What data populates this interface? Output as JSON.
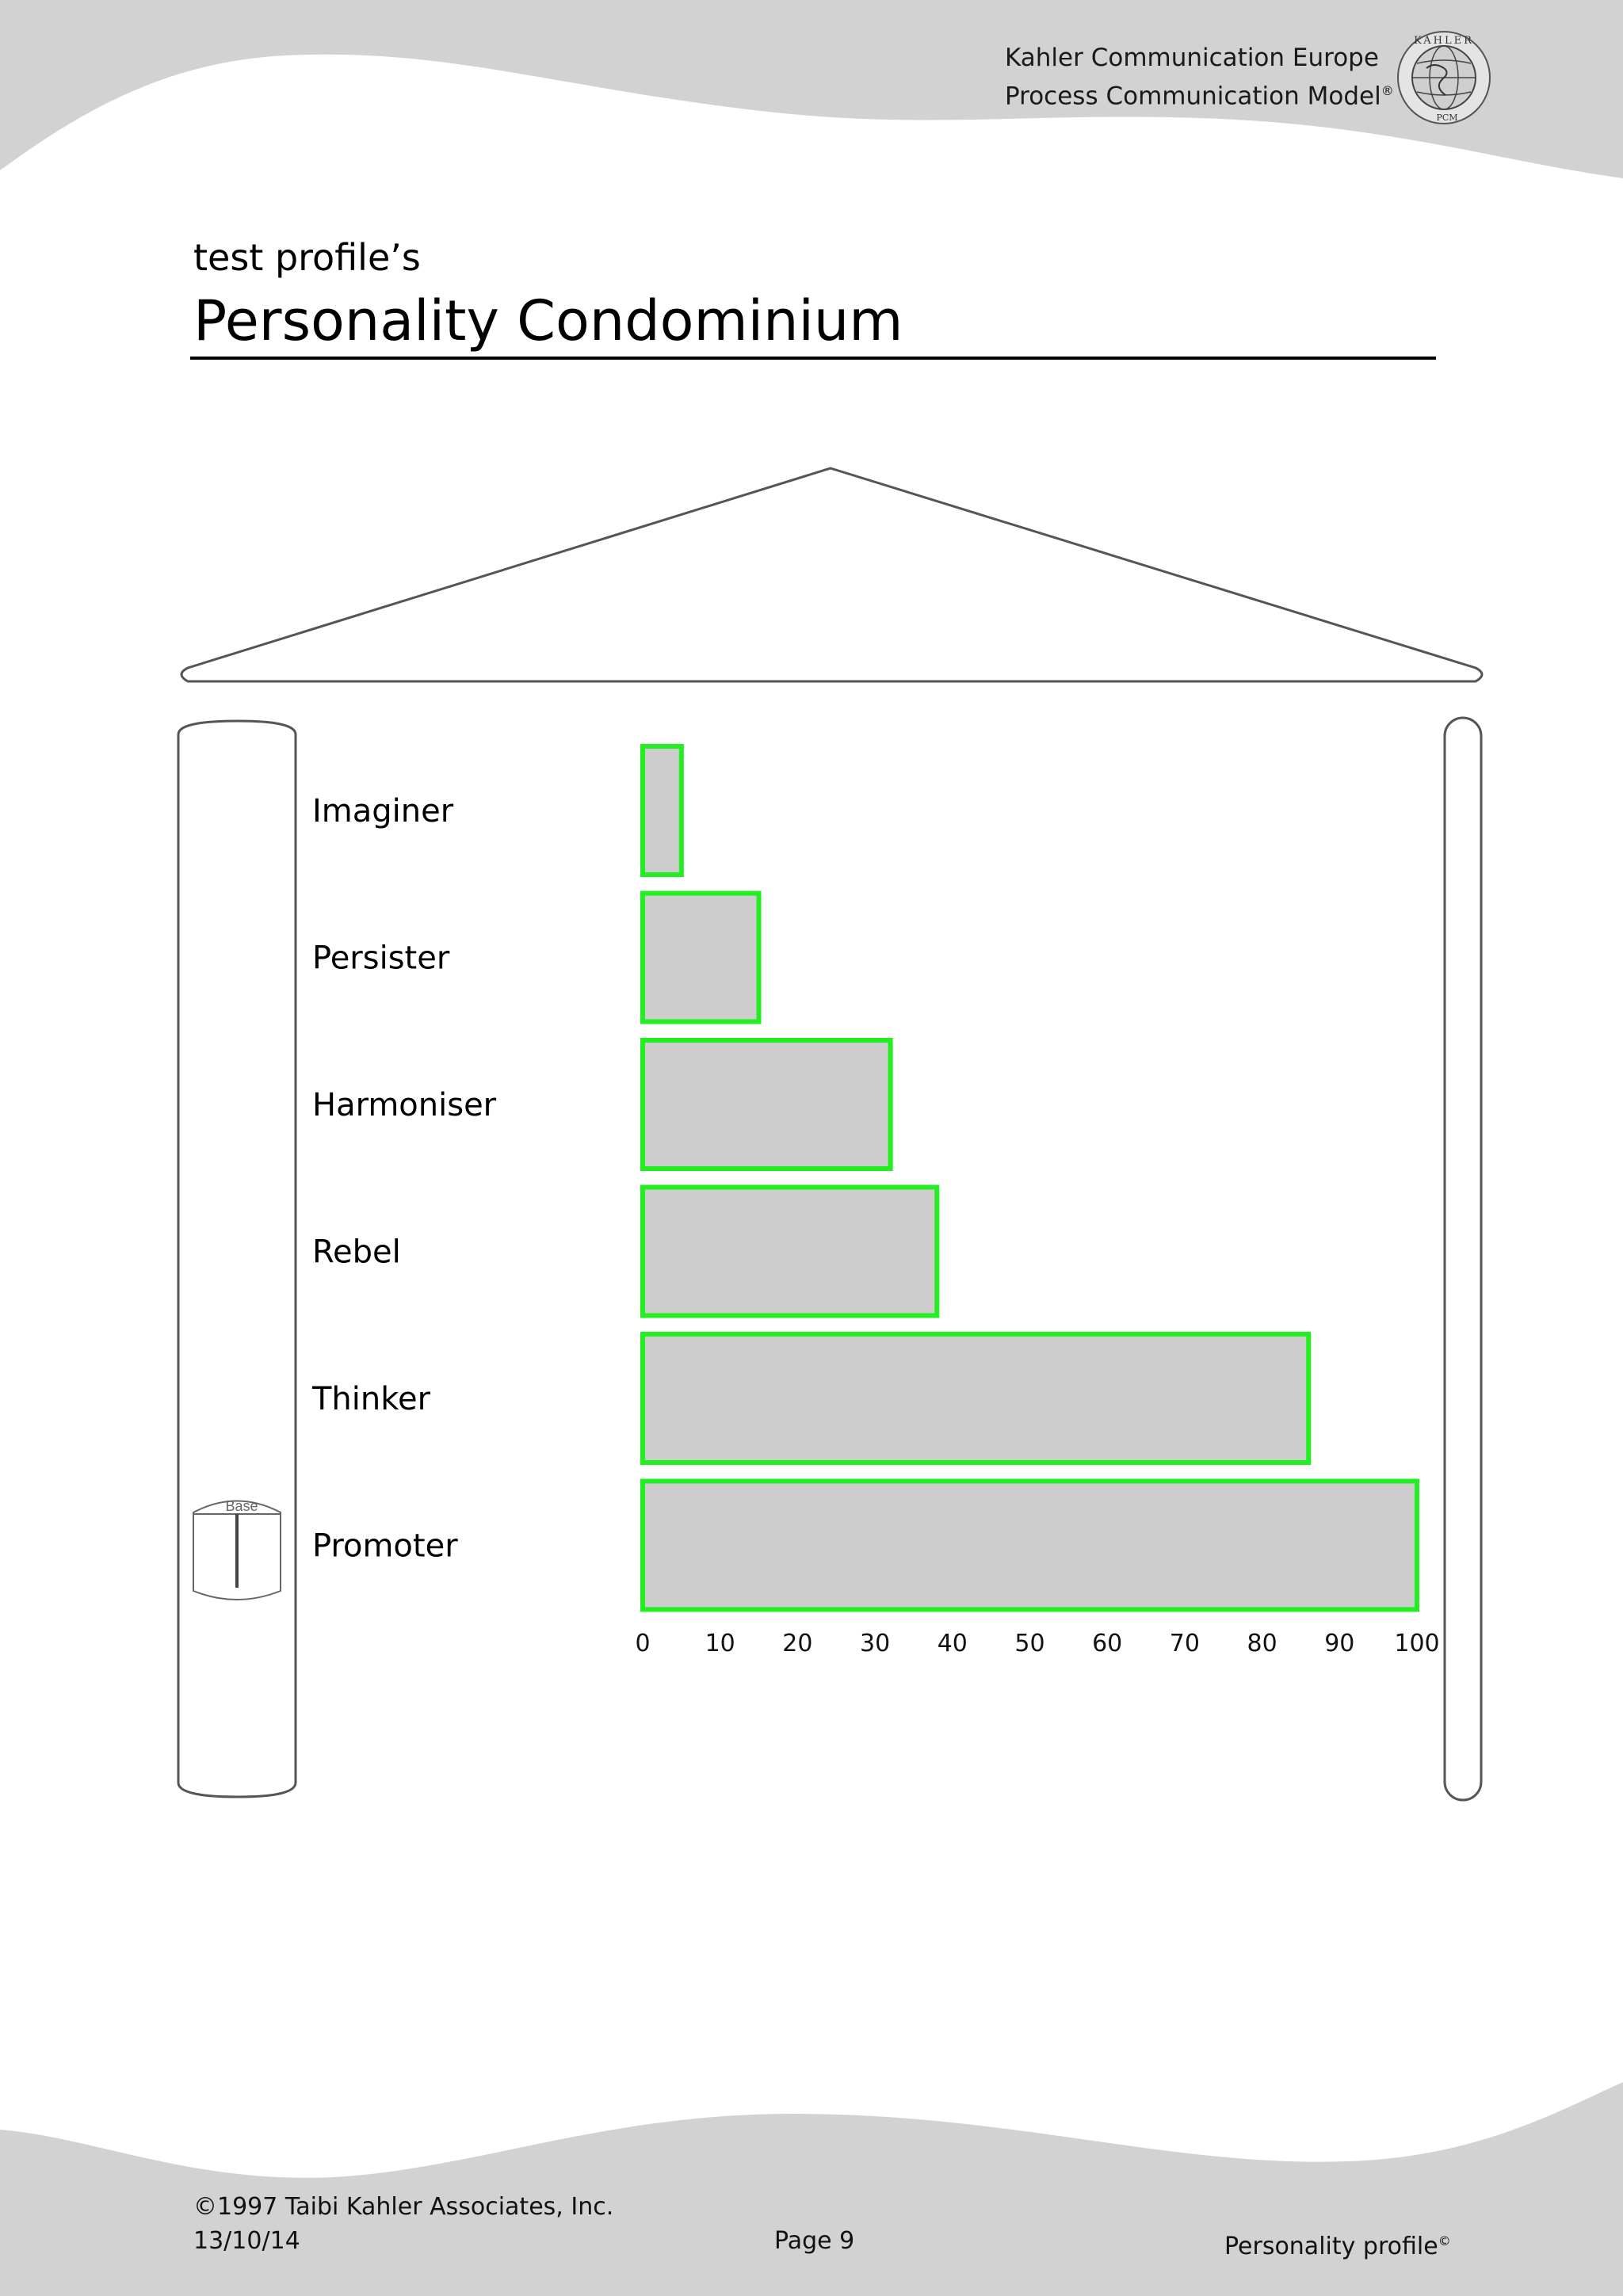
{
  "header": {
    "line1": "Kahler Communication Europe",
    "line2": "Process Communication Model",
    "line2_mark": "®",
    "logo_text_top": "KAHLER",
    "logo_text_bottom": "PCM"
  },
  "page": {
    "subtitle": "test profile’s",
    "title": "Personality Condominium"
  },
  "chart_data": {
    "type": "bar",
    "orientation": "horizontal",
    "categories": [
      "Imaginer",
      "Persister",
      "Harmoniser",
      "Rebel",
      "Thinker",
      "Promoter"
    ],
    "values": [
      5,
      15,
      32,
      38,
      86,
      100
    ],
    "xlim": [
      0,
      100
    ],
    "xticks": [
      "0",
      "10",
      "20",
      "30",
      "40",
      "50",
      "60",
      "70",
      "80",
      "90",
      "100"
    ],
    "base_marker_label": "Base",
    "base_category": "Promoter",
    "bar_fill": "#cdcdcd",
    "bar_stroke": "#22ee22",
    "grid": false
  },
  "footer": {
    "copyright": "©1997 Taibi Kahler Associates, Inc.",
    "date": "13/10/14",
    "page": "Page 9",
    "doc": "Personality profile",
    "doc_mark": "©"
  }
}
